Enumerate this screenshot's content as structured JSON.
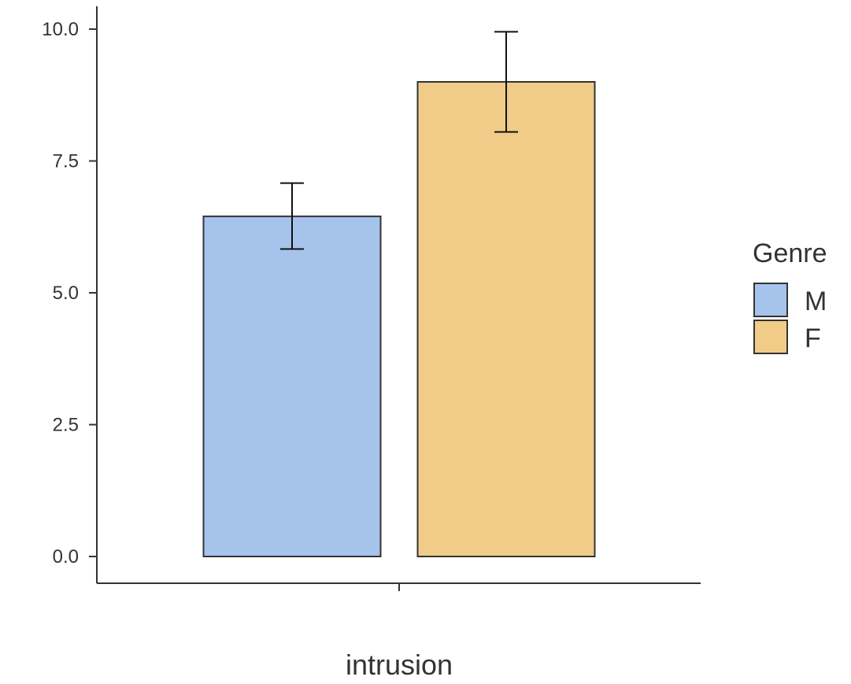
{
  "chart_data": {
    "type": "bar",
    "categories": [
      "intrusion"
    ],
    "xlabel": "intrusion",
    "ylabel": "",
    "ylim": [
      0,
      10
    ],
    "yticks": [
      "0.0",
      "2.5",
      "5.0",
      "7.5",
      "10.0"
    ],
    "legend": {
      "title": "Genre",
      "placement": "right",
      "entries": [
        "M",
        "F"
      ]
    },
    "series": [
      {
        "name": "M",
        "color": "#a6c3ec",
        "values": [
          6.45
        ],
        "error_low": [
          5.83
        ],
        "error_high": [
          7.08
        ]
      },
      {
        "name": "F",
        "color": "#f0cc88",
        "values": [
          9.0
        ],
        "error_low": [
          8.05
        ],
        "error_high": [
          9.95
        ]
      }
    ],
    "grid": false
  }
}
